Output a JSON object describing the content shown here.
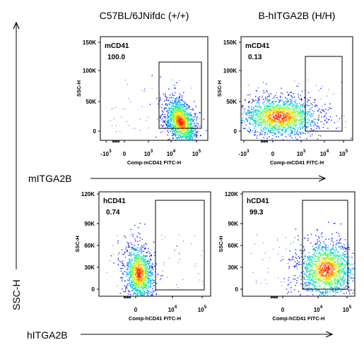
{
  "chart_data": [
    {
      "type": "scatter",
      "row_label": "mITGA2B",
      "column_title": "C57BL/6JNifdc  (+/+)",
      "xlabel": "Comp-mCD41 FITC-H",
      "ylabel": "SSC-H",
      "x_scale": "biexponential",
      "x_ticks": [
        "-10",
        "0",
        "10",
        "10",
        "10"
      ],
      "x_tick_exponents": [
        "3",
        "",
        "3",
        "4",
        "5"
      ],
      "y_ticks": [
        "0",
        "50K",
        "100K",
        "150K"
      ],
      "y_tick_values": [
        0,
        50000,
        100000,
        150000
      ],
      "ylim": [
        -5000,
        165000
      ],
      "gate": {
        "label": "mCD41",
        "percent": "100.0"
      },
      "population": {
        "x_center_log": 4.3,
        "y_center": 12000,
        "shape": "elongated upward, gated positive"
      }
    },
    {
      "type": "scatter",
      "row_label": "mITGA2B",
      "column_title": "B-hITGA2B (H/H)",
      "xlabel": "Comp-mCD41 FITC-H",
      "ylabel": "SSC-H",
      "x_scale": "biexponential",
      "x_ticks": [
        "-10",
        "0",
        "10",
        "10",
        "10"
      ],
      "x_tick_exponents": [
        "3",
        "",
        "3",
        "4",
        "5"
      ],
      "y_ticks": [
        "0",
        "50K",
        "100K",
        "150K"
      ],
      "y_tick_values": [
        0,
        50000,
        100000,
        150000
      ],
      "ylim": [
        -5000,
        165000
      ],
      "gate": {
        "label": "mCD41",
        "percent": "0.13"
      },
      "population": {
        "x_center_log": 2.5,
        "y_center": 15000,
        "shape": "broad, negative"
      }
    },
    {
      "type": "scatter",
      "row_label": "hITGA2B",
      "column_title": "C57BL/6JNifdc  (+/+)",
      "xlabel": "Comp-hCD41 FITC-H",
      "ylabel": "SSC-H",
      "x_scale": "biexponential",
      "x_ticks": [
        "0",
        "10",
        "10"
      ],
      "x_tick_exponents": [
        "",
        "4",
        "5"
      ],
      "y_ticks": [
        "0",
        "30K",
        "60K",
        "90K",
        "120K"
      ],
      "y_tick_values": [
        0,
        30000,
        60000,
        90000,
        120000
      ],
      "ylim": [
        -3000,
        125000
      ],
      "gate": {
        "label": "hCD41",
        "percent": "0.74"
      },
      "population": {
        "x_center_log": 0,
        "y_center": 25000,
        "shape": "elongated upward, negative"
      }
    },
    {
      "type": "scatter",
      "row_label": "hITGA2B",
      "column_title": "B-hITGA2B (H/H)",
      "xlabel": "Comp-hCD41 FITC-H",
      "ylabel": "SSC-H",
      "x_scale": "biexponential",
      "x_ticks": [
        "0",
        "10",
        "10"
      ],
      "x_tick_exponents": [
        "",
        "4",
        "5"
      ],
      "y_ticks": [
        "0",
        "30K",
        "60K",
        "90K",
        "120K"
      ],
      "y_tick_values": [
        0,
        30000,
        60000,
        90000,
        120000
      ],
      "ylim": [
        -3000,
        125000
      ],
      "gate": {
        "label": "hCD41",
        "percent": "99.3"
      },
      "population": {
        "x_center_log": 4.0,
        "y_center": 25000,
        "shape": "broad, gated positive"
      }
    }
  ],
  "figure": {
    "col_titles": [
      "C57BL/6JNifdc  (+/+)",
      "B-hITGA2B (H/H)"
    ],
    "row_labels": [
      "mITGA2B",
      "hITGA2B"
    ],
    "y_axis_label": "SSC-H"
  }
}
